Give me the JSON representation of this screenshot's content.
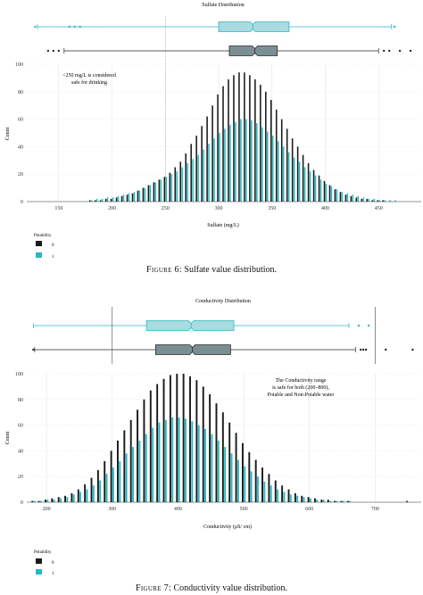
{
  "colors": {
    "potability_0": "#1a1a1a",
    "potability_1": "#2bb8c4",
    "box_0_fill": "#7a8f93",
    "box_1_fill": "#a9dbe0"
  },
  "chart_data": [
    {
      "type": "bar",
      "title": "Sulfate Distribution",
      "xlabel": "Sulfate (mg/L)",
      "ylabel": "Count",
      "xlim": [
        120,
        490
      ],
      "ylim": [
        0,
        100
      ],
      "xticks": [
        150,
        200,
        250,
        300,
        350,
        400,
        450
      ],
      "yticks": [
        0,
        20,
        40,
        60,
        80,
        100
      ],
      "grid": true,
      "legend_title": "Potability",
      "legend_position": "bottom-left",
      "series": [
        {
          "name": "0",
          "color": "#1a1a1a",
          "mean": 333,
          "sd": 40,
          "peak": 94
        },
        {
          "name": "1",
          "color": "#2bb8c4",
          "mean": 332,
          "sd": 43,
          "peak": 60
        }
      ],
      "x": [
        180,
        185,
        190,
        195,
        200,
        205,
        210,
        215,
        220,
        225,
        230,
        235,
        240,
        245,
        250,
        255,
        260,
        265,
        270,
        275,
        280,
        285,
        290,
        295,
        300,
        305,
        310,
        315,
        320,
        325,
        330,
        335,
        340,
        345,
        350,
        355,
        360,
        365,
        370,
        375,
        380,
        385,
        390,
        395,
        400,
        405,
        410,
        415,
        420,
        425,
        430,
        435,
        440,
        445,
        450,
        455,
        460,
        465,
        470,
        475,
        480
      ],
      "y0": [
        1,
        1,
        1,
        2,
        2,
        3,
        4,
        5,
        6,
        8,
        10,
        12,
        14,
        16,
        18,
        21,
        25,
        29,
        35,
        42,
        48,
        55,
        62,
        70,
        78,
        84,
        89,
        92,
        94,
        94,
        92,
        89,
        85,
        80,
        74,
        67,
        60,
        53,
        46,
        40,
        34,
        28,
        23,
        19,
        15,
        12,
        9,
        7,
        5,
        4,
        3,
        2,
        2,
        1,
        1,
        1,
        0,
        0,
        0,
        0,
        0
      ],
      "y1": [
        1,
        2,
        2,
        3,
        3,
        4,
        5,
        6,
        7,
        8,
        10,
        12,
        14,
        16,
        18,
        20,
        22,
        25,
        28,
        31,
        34,
        38,
        42,
        46,
        50,
        53,
        56,
        58,
        60,
        60,
        59,
        57,
        54,
        51,
        48,
        44,
        40,
        36,
        32,
        29,
        25,
        22,
        19,
        16,
        13,
        11,
        9,
        7,
        6,
        5,
        4,
        3,
        2,
        2,
        1,
        1,
        1,
        1,
        0,
        0,
        0
      ],
      "boxplots": [
        {
          "name": "1",
          "whisker_low": 130,
          "q1": 300,
          "median": 332,
          "q3": 366,
          "whisker_high": 462,
          "outliers": [
            128,
            160,
            165,
            170,
            465
          ]
        },
        {
          "name": "0",
          "whisker_low": 155,
          "q1": 310,
          "median": 334,
          "q3": 355,
          "whisker_high": 450,
          "outliers": [
            140,
            145,
            150,
            455,
            460,
            470,
            480
          ]
        }
      ],
      "reference_lines": [
        {
          "x": 250,
          "style": "dotted",
          "label": "<250 mg/L is considered safe for drinking"
        }
      ]
    },
    {
      "type": "bar",
      "title": "Conductivity Distribution",
      "xlabel": "Conductivity (μS/ cm)",
      "ylabel": "Count",
      "xlim": [
        170,
        770
      ],
      "ylim": [
        0,
        100
      ],
      "xticks": [
        200,
        300,
        400,
        500,
        600,
        700
      ],
      "yticks": [
        0,
        20,
        40,
        60,
        80,
        100
      ],
      "grid": true,
      "legend_title": "Potability",
      "legend_position": "bottom-left",
      "series": [
        {
          "name": "0",
          "color": "#1a1a1a",
          "mean": 422,
          "sd": 80,
          "peak": 100
        },
        {
          "name": "1",
          "color": "#2bb8c4",
          "mean": 422,
          "sd": 80,
          "peak": 66
        }
      ],
      "x": [
        180,
        190,
        200,
        210,
        220,
        230,
        240,
        250,
        260,
        270,
        280,
        290,
        300,
        310,
        320,
        330,
        340,
        350,
        360,
        370,
        380,
        390,
        400,
        410,
        420,
        430,
        440,
        450,
        460,
        470,
        480,
        490,
        500,
        510,
        520,
        530,
        540,
        550,
        560,
        570,
        580,
        590,
        600,
        610,
        620,
        630,
        640,
        650,
        660,
        670,
        680,
        690,
        700,
        710,
        720,
        730,
        740,
        750,
        760
      ],
      "y0": [
        1,
        1,
        2,
        3,
        4,
        5,
        7,
        10,
        14,
        19,
        25,
        32,
        40,
        48,
        56,
        64,
        72,
        80,
        87,
        92,
        96,
        99,
        100,
        100,
        98,
        95,
        90,
        84,
        77,
        70,
        62,
        54,
        46,
        39,
        33,
        27,
        22,
        17,
        13,
        10,
        7,
        5,
        4,
        3,
        2,
        2,
        1,
        1,
        1,
        0,
        0,
        0,
        0,
        0,
        0,
        0,
        0,
        1,
        0
      ],
      "y1": [
        1,
        1,
        2,
        2,
        3,
        4,
        6,
        8,
        10,
        13,
        17,
        22,
        27,
        32,
        38,
        43,
        48,
        53,
        58,
        62,
        64,
        66,
        66,
        65,
        63,
        60,
        57,
        53,
        48,
        43,
        38,
        33,
        28,
        24,
        20,
        16,
        13,
        10,
        8,
        6,
        5,
        4,
        3,
        2,
        2,
        1,
        1,
        1,
        1,
        0,
        0,
        0,
        0,
        0,
        0,
        0,
        0,
        0,
        0
      ],
      "boxplots": [
        {
          "name": "1",
          "whisker_low": 180,
          "q1": 352,
          "median": 420,
          "q3": 485,
          "whisker_high": 660,
          "outliers": [
            675,
            690
          ]
        },
        {
          "name": "0",
          "whisker_low": 182,
          "q1": 366,
          "median": 422,
          "q3": 480,
          "whisker_high": 670,
          "outliers": [
            180,
            678,
            682,
            686,
            716,
            757
          ]
        }
      ],
      "reference_lines": [
        {
          "x": 300,
          "style": "solid",
          "label": ""
        },
        {
          "x": 700,
          "style": "solid",
          "label": ""
        }
      ],
      "annotation": "The Conductivity range is safe for both (200–800), Potable and Non-Potable water"
    }
  ],
  "captions": {
    "fig6_prefix": "Figure 6:",
    "fig6_text": "Sulfate value distribution.",
    "fig7_prefix": "Figure 7:",
    "fig7_text": "Conductivity value distribution."
  },
  "legend": {
    "title": "Potability",
    "labels": [
      "0",
      "1"
    ]
  },
  "annotations": {
    "sulfate_line1": "<250 mg/L is considered",
    "sulfate_line2": "safe for drinking",
    "cond_line1": "The Conductivity range",
    "cond_line2": "is safe for both (200–800),",
    "cond_line3": "Potable and Non-Potable water"
  }
}
